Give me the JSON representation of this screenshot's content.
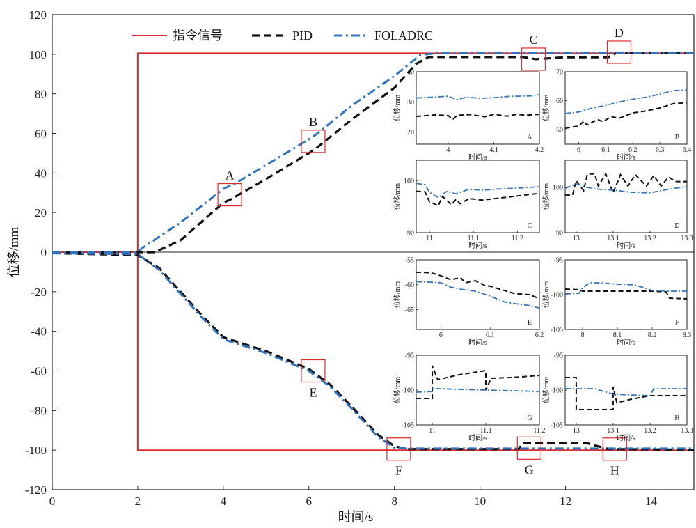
{
  "chart_data": {
    "type": "line",
    "title": "",
    "xlabel": "时间/s",
    "ylabel": "位移/mm",
    "xlim": [
      0,
      15
    ],
    "ylim": [
      -120,
      120
    ],
    "xticks": [
      0,
      2,
      4,
      6,
      8,
      10,
      12,
      14
    ],
    "yticks": [
      120,
      100,
      80,
      60,
      40,
      20,
      0,
      -20,
      -40,
      -60,
      -80,
      -100,
      -120
    ],
    "legend_position": "top",
    "colors": {
      "command": "#e0282a",
      "pid": "#111111",
      "foladrc": "#2f74c0",
      "box": "#e0282a"
    },
    "series": [
      {
        "name": "指令信号",
        "style": "solid",
        "upper": [
          [
            0,
            0
          ],
          [
            2,
            0
          ],
          [
            2,
            100.5
          ],
          [
            15,
            100.5
          ]
        ],
        "lower": [
          [
            0,
            0
          ],
          [
            2,
            0
          ],
          [
            2,
            -100
          ],
          [
            15,
            -100
          ]
        ]
      },
      {
        "name": "PID",
        "style": "dashed",
        "upper": [
          [
            0,
            0
          ],
          [
            2,
            0
          ],
          [
            2.4,
            0
          ],
          [
            3,
            6
          ],
          [
            4,
            25
          ],
          [
            4.2,
            27
          ],
          [
            5,
            37
          ],
          [
            6,
            50
          ],
          [
            6.2,
            53
          ],
          [
            7,
            67
          ],
          [
            8,
            83
          ],
          [
            8.5,
            95
          ],
          [
            8.8,
            98.6
          ],
          [
            11,
            98.6
          ],
          [
            11.3,
            97.5
          ],
          [
            12,
            98.5
          ],
          [
            13,
            98.5
          ],
          [
            13.2,
            100.8
          ],
          [
            15,
            100.8
          ]
        ],
        "lower": [
          [
            0,
            -0.5
          ],
          [
            2,
            -1.5
          ],
          [
            2.5,
            -8
          ],
          [
            3,
            -20
          ],
          [
            3.5,
            -32
          ],
          [
            4,
            -43
          ],
          [
            5,
            -50
          ],
          [
            6,
            -59
          ],
          [
            6.5,
            -67
          ],
          [
            7,
            -78
          ],
          [
            7.6,
            -92
          ],
          [
            8,
            -98
          ],
          [
            8.3,
            -99.5
          ],
          [
            10.9,
            -99.5
          ],
          [
            11,
            -96.5
          ],
          [
            11.4,
            -96.5
          ],
          [
            12.5,
            -96.5
          ],
          [
            13,
            -99.5
          ],
          [
            15,
            -99.8
          ]
        ]
      },
      {
        "name": "FOLADRC",
        "style": "dash-dot",
        "upper": [
          [
            0,
            0
          ],
          [
            2,
            0
          ],
          [
            2.1,
            2
          ],
          [
            3,
            15
          ],
          [
            4,
            32
          ],
          [
            4.3,
            35
          ],
          [
            5,
            44
          ],
          [
            6,
            57
          ],
          [
            6.2,
            60
          ],
          [
            7,
            74
          ],
          [
            8,
            89
          ],
          [
            8.6,
            99.6
          ],
          [
            9,
            100.6
          ],
          [
            15,
            100.8
          ]
        ],
        "lower": [
          [
            0,
            -0.5
          ],
          [
            2,
            -1
          ],
          [
            2.5,
            -9
          ],
          [
            3,
            -21
          ],
          [
            3.5,
            -33
          ],
          [
            4,
            -44
          ],
          [
            5,
            -51
          ],
          [
            6,
            -60
          ],
          [
            6.5,
            -68
          ],
          [
            7,
            -79
          ],
          [
            7.6,
            -93
          ],
          [
            8,
            -98.8
          ],
          [
            8.3,
            -99.2
          ],
          [
            15,
            -99.2
          ]
        ]
      }
    ],
    "markers": [
      {
        "label": "A",
        "x": 4.15,
        "y": 29
      },
      {
        "label": "B",
        "x": 6.1,
        "y": 56
      },
      {
        "label": "C",
        "x": 11.25,
        "y": 97.5
      },
      {
        "label": "D",
        "x": 13.25,
        "y": 101
      },
      {
        "label": "E",
        "x": 6.1,
        "y": -60
      },
      {
        "label": "F",
        "x": 8.1,
        "y": -99.5
      },
      {
        "label": "G",
        "x": 11.15,
        "y": -99
      },
      {
        "label": "H",
        "x": 13.15,
        "y": -99.5
      }
    ],
    "insets": [
      {
        "tag": "A",
        "xlabel": "时间/s",
        "ylabel": "位移/mm",
        "xlim": [
          3.93,
          4.2
        ],
        "ylim": [
          16,
          40
        ],
        "xticks": [
          4.0,
          4.1,
          4.2
        ],
        "yticks": [
          20,
          30,
          40
        ],
        "pid": [
          [
            3.93,
            25.2
          ],
          [
            3.97,
            25.7
          ],
          [
            4.0,
            25.5
          ],
          [
            4.01,
            24.2
          ],
          [
            4.02,
            25.6
          ],
          [
            4.05,
            25.8
          ],
          [
            4.08,
            25.1
          ],
          [
            4.1,
            25.9
          ],
          [
            4.13,
            25.3
          ],
          [
            4.15,
            25.9
          ],
          [
            4.17,
            25.6
          ],
          [
            4.2,
            25.9
          ]
        ],
        "fol": [
          [
            3.93,
            31.3
          ],
          [
            3.97,
            31.6
          ],
          [
            4.0,
            31.9
          ],
          [
            4.02,
            30.8
          ],
          [
            4.04,
            31.6
          ],
          [
            4.07,
            31.2
          ],
          [
            4.1,
            31.4
          ],
          [
            4.13,
            31.8
          ],
          [
            4.15,
            31.9
          ],
          [
            4.18,
            32.0
          ],
          [
            4.2,
            32.4
          ]
        ]
      },
      {
        "tag": "B",
        "xlabel": "时间/s",
        "ylabel": "位移/mm",
        "xlim": [
          5.95,
          6.4
        ],
        "ylim": [
          45,
          70
        ],
        "xticks": [
          6.0,
          6.1,
          6.2,
          6.3,
          6.4
        ],
        "yticks": [
          50,
          60,
          70
        ],
        "pid": [
          [
            5.95,
            50.5
          ],
          [
            6.0,
            51.3
          ],
          [
            6.02,
            53.0
          ],
          [
            6.03,
            51.6
          ],
          [
            6.07,
            53.5
          ],
          [
            6.09,
            52.8
          ],
          [
            6.12,
            54.5
          ],
          [
            6.15,
            54.0
          ],
          [
            6.2,
            55.8
          ],
          [
            6.25,
            56.5
          ],
          [
            6.3,
            57.5
          ],
          [
            6.35,
            59.0
          ],
          [
            6.4,
            59.3
          ]
        ],
        "fol": [
          [
            5.95,
            55.6
          ],
          [
            6.0,
            56.1
          ],
          [
            6.05,
            57.5
          ],
          [
            6.1,
            58.4
          ],
          [
            6.15,
            59.6
          ],
          [
            6.2,
            60.5
          ],
          [
            6.25,
            61.2
          ],
          [
            6.3,
            62.3
          ],
          [
            6.35,
            63.5
          ],
          [
            6.4,
            63.7
          ]
        ]
      },
      {
        "tag": "C",
        "xlabel": "时间/s",
        "ylabel": "位移/mm",
        "xlim": [
          10.97,
          11.25
        ],
        "ylim": [
          90,
          104
        ],
        "xticks": [
          11.0,
          11.1,
          11.2
        ],
        "yticks": [
          90,
          100
        ],
        "pid": [
          [
            10.97,
            98.0
          ],
          [
            10.99,
            97.9
          ],
          [
            11.0,
            96.0
          ],
          [
            11.02,
            95.2
          ],
          [
            11.03,
            97.0
          ],
          [
            11.05,
            95.4
          ],
          [
            11.06,
            96.4
          ],
          [
            11.07,
            95.6
          ],
          [
            11.09,
            96.6
          ],
          [
            11.12,
            96.3
          ],
          [
            11.15,
            96.6
          ],
          [
            11.2,
            97.1
          ],
          [
            11.25,
            97.6
          ]
        ],
        "fol": [
          [
            10.97,
            99.5
          ],
          [
            10.99,
            99.3
          ],
          [
            11.0,
            97.8
          ],
          [
            11.02,
            96.8
          ],
          [
            11.04,
            98.0
          ],
          [
            11.06,
            97.5
          ],
          [
            11.09,
            98.4
          ],
          [
            11.12,
            98.2
          ],
          [
            11.15,
            98.4
          ],
          [
            11.2,
            98.6
          ],
          [
            11.25,
            98.9
          ]
        ]
      },
      {
        "tag": "D",
        "xlabel": "时间/s",
        "ylabel": "位移/mm",
        "xlim": [
          12.97,
          13.3
        ],
        "ylim": [
          90,
          106
        ],
        "xticks": [
          13.0,
          13.1,
          13.2,
          13.3
        ],
        "yticks": [
          90,
          100
        ],
        "pid": [
          [
            12.97,
            98.3
          ],
          [
            12.99,
            98.3
          ],
          [
            13.0,
            101.5
          ],
          [
            13.02,
            99.3
          ],
          [
            13.03,
            102.9
          ],
          [
            13.05,
            103.0
          ],
          [
            13.06,
            100.3
          ],
          [
            13.08,
            103.0
          ],
          [
            13.1,
            98.8
          ],
          [
            13.12,
            102.8
          ],
          [
            13.14,
            100.3
          ],
          [
            13.16,
            102.8
          ],
          [
            13.19,
            100.3
          ],
          [
            13.21,
            102.6
          ],
          [
            13.23,
            100.3
          ],
          [
            13.25,
            102.3
          ],
          [
            13.27,
            101.3
          ],
          [
            13.3,
            101.3
          ]
        ],
        "fol": [
          [
            12.97,
            99.8
          ],
          [
            13.0,
            100.8
          ],
          [
            13.03,
            100.0
          ],
          [
            13.06,
            99.6
          ],
          [
            13.1,
            99.4
          ],
          [
            13.15,
            98.9
          ],
          [
            13.2,
            98.8
          ],
          [
            13.25,
            99.6
          ],
          [
            13.3,
            100.2
          ]
        ]
      },
      {
        "tag": "E",
        "xlabel": "时间/s",
        "ylabel": "位移/mm",
        "xlim": [
          5.95,
          6.2
        ],
        "ylim": [
          -69,
          -55
        ],
        "xticks": [
          6.0,
          6.1,
          6.2
        ],
        "yticks": [
          -65,
          -60,
          -55
        ],
        "pid": [
          [
            5.95,
            -57.5
          ],
          [
            5.98,
            -57.6
          ],
          [
            6.0,
            -58.2
          ],
          [
            6.02,
            -59.0
          ],
          [
            6.04,
            -58.6
          ],
          [
            6.05,
            -59.6
          ],
          [
            6.07,
            -59.2
          ],
          [
            6.09,
            -60.2
          ],
          [
            6.1,
            -60.3
          ],
          [
            6.13,
            -61.2
          ],
          [
            6.15,
            -61.8
          ],
          [
            6.18,
            -62.0
          ],
          [
            6.2,
            -62.8
          ]
        ],
        "fol": [
          [
            5.95,
            -59.4
          ],
          [
            5.98,
            -59.5
          ],
          [
            6.0,
            -59.6
          ],
          [
            6.02,
            -60.5
          ],
          [
            6.04,
            -60.9
          ],
          [
            6.07,
            -61.3
          ],
          [
            6.1,
            -62.3
          ],
          [
            6.13,
            -63.5
          ],
          [
            6.15,
            -63.8
          ],
          [
            6.18,
            -64.2
          ],
          [
            6.2,
            -64.7
          ]
        ]
      },
      {
        "tag": "F",
        "xlabel": "时间/s",
        "ylabel": "位移/mm",
        "xlim": [
          7.95,
          8.3
        ],
        "ylim": [
          -105,
          -95
        ],
        "xticks": [
          8.0,
          8.1,
          8.2,
          8.3
        ],
        "yticks": [
          -95,
          -100,
          -105
        ],
        "pid": [
          [
            7.95,
            -99.2
          ],
          [
            7.99,
            -99.3
          ],
          [
            8.0,
            -99.5
          ],
          [
            8.1,
            -99.5
          ],
          [
            8.2,
            -99.5
          ],
          [
            8.24,
            -99.6
          ],
          [
            8.25,
            -100.5
          ],
          [
            8.3,
            -100.6
          ]
        ],
        "fol": [
          [
            7.95,
            -99.9
          ],
          [
            7.99,
            -99.8
          ],
          [
            8.0,
            -99.0
          ],
          [
            8.02,
            -98.3
          ],
          [
            8.05,
            -98.3
          ],
          [
            8.1,
            -98.5
          ],
          [
            8.15,
            -98.6
          ],
          [
            8.2,
            -99.4
          ],
          [
            8.25,
            -99.5
          ],
          [
            8.3,
            -99.5
          ]
        ]
      },
      {
        "tag": "G",
        "xlabel": "时间/s",
        "ylabel": "位移/mm",
        "xlim": [
          10.97,
          11.2
        ],
        "ylim": [
          -105,
          -95
        ],
        "xticks": [
          11.0,
          11.1,
          11.2
        ],
        "yticks": [
          -95,
          -100,
          -105
        ],
        "pid": [
          [
            10.97,
            -101.2
          ],
          [
            10.99,
            -101.2
          ],
          [
            11.0,
            -101.2
          ],
          [
            11.0,
            -96.5
          ],
          [
            11.01,
            -98.5
          ],
          [
            11.05,
            -97.8
          ],
          [
            11.1,
            -97.2
          ],
          [
            11.1,
            -100.0
          ],
          [
            11.11,
            -98.3
          ],
          [
            11.15,
            -98.2
          ],
          [
            11.2,
            -97.9
          ]
        ],
        "fol": [
          [
            10.97,
            -100.3
          ],
          [
            11.0,
            -100.2
          ],
          [
            11.0,
            -99.8
          ],
          [
            11.01,
            -99.8
          ],
          [
            11.05,
            -99.9
          ],
          [
            11.1,
            -100.0
          ],
          [
            11.15,
            -100.1
          ],
          [
            11.2,
            -100.2
          ]
        ]
      },
      {
        "tag": "H",
        "xlabel": "时间/s",
        "ylabel": "位移/mm",
        "xlim": [
          12.97,
          13.3
        ],
        "ylim": [
          -105,
          -95
        ],
        "xticks": [
          13.0,
          13.1,
          13.2,
          13.3
        ],
        "yticks": [
          -95,
          -100,
          -105
        ],
        "pid": [
          [
            12.97,
            -98.2
          ],
          [
            12.99,
            -98.2
          ],
          [
            13.0,
            -98.2
          ],
          [
            13.0,
            -102.8
          ],
          [
            13.05,
            -102.8
          ],
          [
            13.1,
            -102.8
          ],
          [
            13.1,
            -99.5
          ],
          [
            13.11,
            -101.8
          ],
          [
            13.15,
            -101.3
          ],
          [
            13.2,
            -100.8
          ],
          [
            13.3,
            -100.8
          ]
        ],
        "fol": [
          [
            12.97,
            -99.8
          ],
          [
            13.0,
            -99.8
          ],
          [
            13.05,
            -99.8
          ],
          [
            13.1,
            -100.6
          ],
          [
            13.15,
            -100.7
          ],
          [
            13.2,
            -100.8
          ],
          [
            13.21,
            -99.8
          ],
          [
            13.3,
            -99.8
          ]
        ]
      }
    ]
  }
}
